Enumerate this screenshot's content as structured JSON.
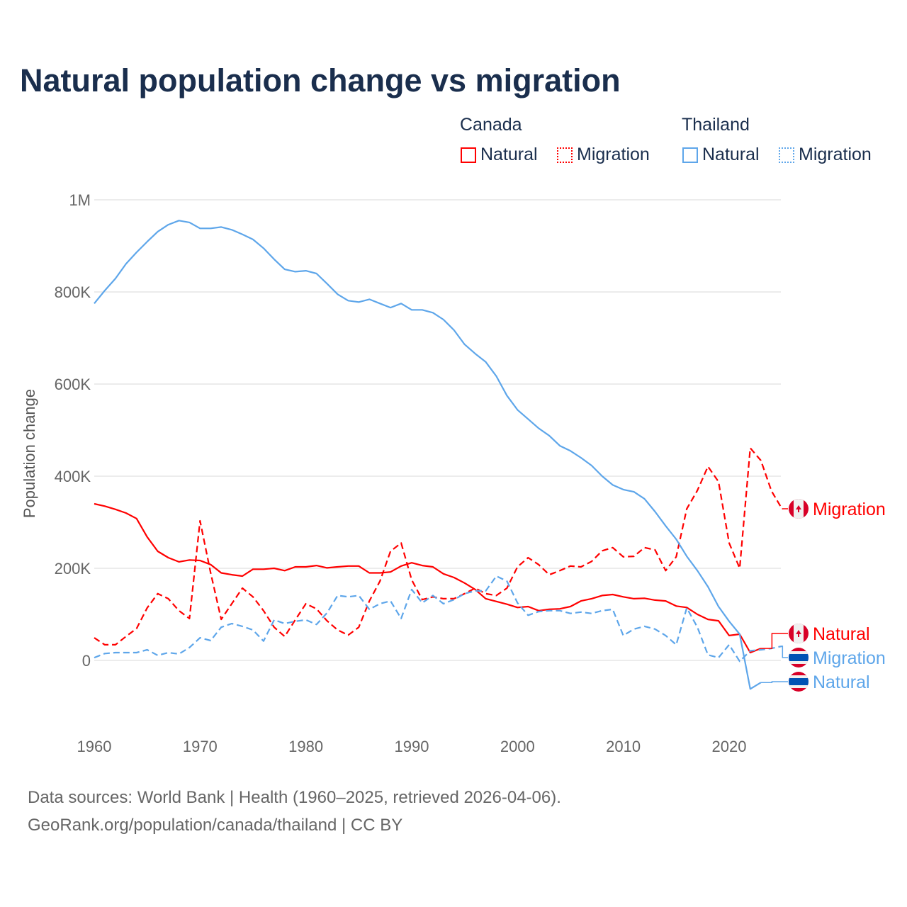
{
  "chart_data": {
    "type": "line",
    "title": "Natural population change vs migration",
    "ylabel": "Population change",
    "xlabel": "",
    "xlim": [
      1960,
      2025
    ],
    "ylim": [
      -150000,
      1000000
    ],
    "x_ticks": [
      1960,
      1970,
      1980,
      1990,
      2000,
      2010,
      2020
    ],
    "x_tick_labels": [
      "1960",
      "1970",
      "1980",
      "1990",
      "2000",
      "2010",
      "2020"
    ],
    "y_ticks": [
      0,
      200000,
      400000,
      600000,
      800000,
      1000000
    ],
    "y_tick_labels": [
      "0",
      "200K",
      "400K",
      "600K",
      "800K",
      "1M"
    ],
    "grid": true,
    "legend": {
      "placement": "top-right",
      "groups": [
        {
          "name": "Canada",
          "items": [
            "Natural",
            "Migration"
          ]
        },
        {
          "name": "Thailand",
          "items": [
            "Natural",
            "Migration"
          ]
        }
      ]
    },
    "series": [
      {
        "name": "Natural",
        "country": "Canada",
        "color": "#ff0000",
        "dash": false,
        "start_year": 1960,
        "values_k": [
          340,
          335,
          328,
          320,
          308,
          268,
          237,
          223,
          214,
          218,
          217,
          208,
          190,
          186,
          183,
          198,
          198,
          200,
          195,
          203,
          203,
          206,
          201,
          203,
          205,
          205,
          190,
          190,
          192,
          205,
          212,
          206,
          203,
          188,
          180,
          168,
          154,
          134,
          128,
          122,
          115,
          117,
          108,
          111,
          112,
          117,
          129,
          134,
          141,
          143,
          138,
          134,
          135,
          131,
          129,
          118,
          115,
          100,
          89,
          86,
          54,
          57,
          17,
          26
        ]
      },
      {
        "name": "Migration",
        "country": "Canada",
        "color": "#ff0000",
        "dash": true,
        "start_year": 1960,
        "values_k": [
          49,
          34,
          34,
          52,
          69,
          114,
          145,
          134,
          108,
          91,
          303,
          190,
          89,
          123,
          157,
          138,
          108,
          72,
          52,
          88,
          123,
          112,
          86,
          66,
          55,
          72,
          129,
          172,
          237,
          255,
          175,
          132,
          138,
          134,
          134,
          145,
          157,
          145,
          141,
          157,
          203,
          223,
          208,
          186,
          195,
          205,
          203,
          215,
          238,
          245,
          225,
          226,
          245,
          240,
          195,
          225,
          329,
          369,
          421,
          388,
          255,
          200,
          461,
          434,
          368,
          329
        ]
      },
      {
        "name": "Natural",
        "country": "Thailand",
        "color": "#5ea6ea",
        "dash": false,
        "start_year": 1960,
        "values_k": [
          775,
          803,
          829,
          861,
          886,
          909,
          931,
          946,
          955,
          951,
          938,
          938,
          941,
          935,
          925,
          914,
          895,
          871,
          849,
          844,
          846,
          840,
          818,
          795,
          781,
          778,
          784,
          775,
          766,
          775,
          761,
          761,
          755,
          740,
          717,
          686,
          666,
          648,
          617,
          575,
          544,
          524,
          504,
          488,
          466,
          455,
          440,
          423,
          400,
          381,
          371,
          366,
          351,
          323,
          292,
          263,
          226,
          195,
          160,
          117,
          85,
          57,
          -62,
          -48
        ]
      },
      {
        "name": "Migration",
        "country": "Thailand",
        "color": "#5ea6ea",
        "dash": true,
        "start_year": 1960,
        "values_k": [
          6,
          15,
          17,
          17,
          17,
          23,
          11,
          17,
          14,
          28,
          49,
          43,
          72,
          80,
          74,
          66,
          42,
          88,
          80,
          85,
          88,
          78,
          103,
          141,
          138,
          141,
          111,
          123,
          129,
          91,
          154,
          125,
          141,
          123,
          132,
          145,
          151,
          151,
          183,
          172,
          125,
          98,
          106,
          108,
          108,
          102,
          105,
          102,
          108,
          111,
          54,
          68,
          74,
          68,
          54,
          34,
          114,
          72,
          12,
          6,
          34,
          -2,
          21,
          23,
          26,
          31
        ]
      }
    ],
    "end_labels": [
      {
        "text": "Migration",
        "country": "Canada",
        "color": "#ff0000"
      },
      {
        "text": "Natural",
        "country": "Canada",
        "color": "#ff0000"
      },
      {
        "text": "Migration",
        "country": "Thailand",
        "color": "#5ea6ea"
      },
      {
        "text": "Natural",
        "country": "Thailand",
        "color": "#5ea6ea"
      }
    ]
  },
  "footer": {
    "line1": "Data sources: World Bank | Health (1960–2025, retrieved 2026-04-06).",
    "line2": "GeoRank.org/population/canada/thailand | CC BY"
  }
}
